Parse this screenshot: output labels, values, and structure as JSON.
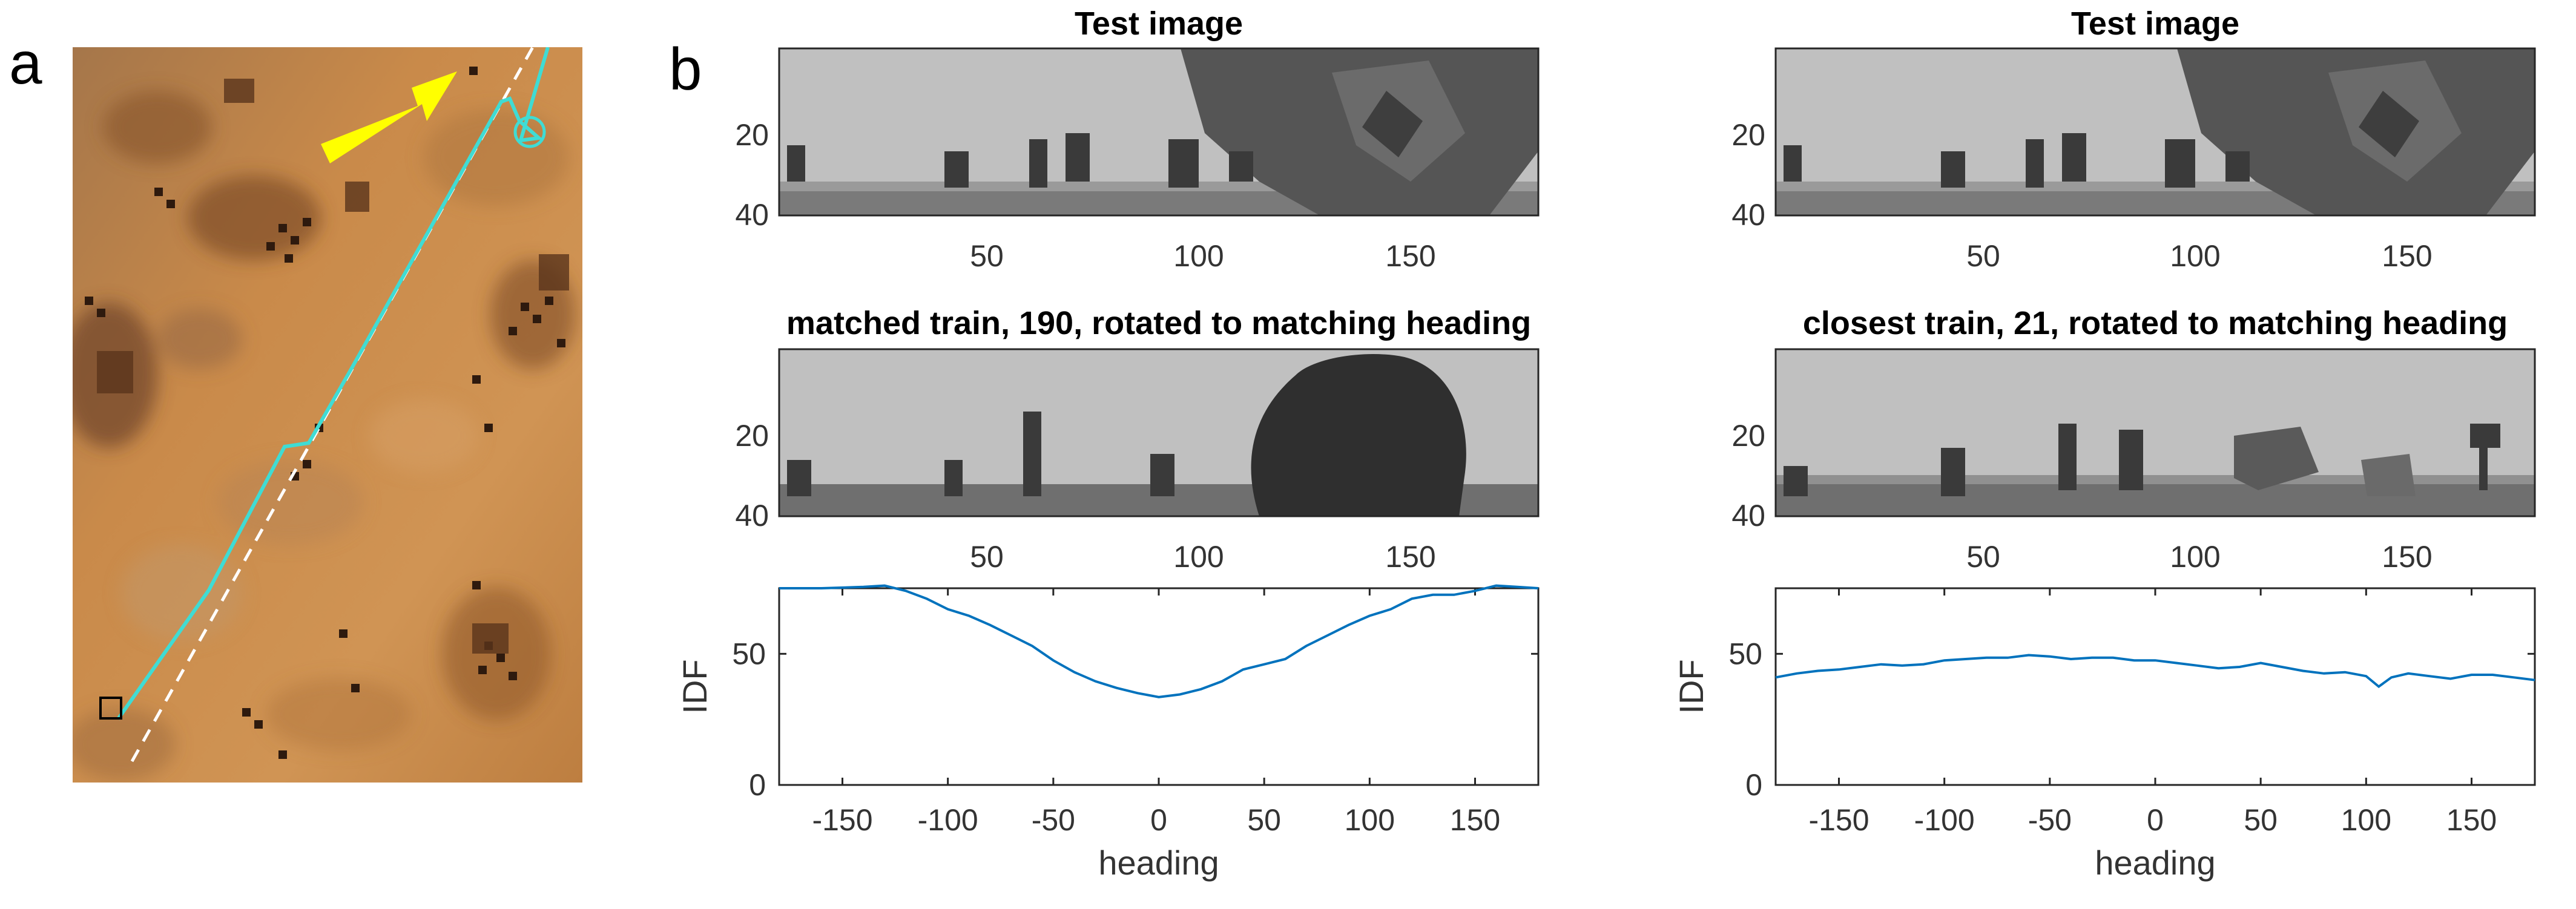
{
  "panel_labels": {
    "a": "a",
    "b": "b"
  },
  "map_panel": {
    "colors": {
      "ground_light": "#c98a4a",
      "ground_dark": "#8a5228",
      "route": "#3fdcd4",
      "arrow": "#ffff00"
    }
  },
  "image_panels": [
    {
      "title": "Test image",
      "y_ticks": [
        "20",
        "40"
      ],
      "x_ticks": [
        "50",
        "100",
        "150"
      ]
    },
    {
      "title": "Test image",
      "y_ticks": [
        "20",
        "40"
      ],
      "x_ticks": [
        "50",
        "100",
        "150"
      ]
    },
    {
      "title": "matched train, 190, rotated to matching heading",
      "y_ticks": [
        "20",
        "40"
      ],
      "x_ticks": [
        "50",
        "100",
        "150"
      ]
    },
    {
      "title": "closest train, 21, rotated to matching heading",
      "y_ticks": [
        "20",
        "40"
      ],
      "x_ticks": [
        "50",
        "100",
        "150"
      ]
    }
  ],
  "chart_data": [
    {
      "type": "line",
      "xlabel": "heading",
      "ylabel": "IDF",
      "xlim": [
        -180,
        180
      ],
      "ylim": [
        0,
        75
      ],
      "x_ticks": [
        -150,
        -100,
        -50,
        0,
        50,
        100,
        150
      ],
      "y_ticks": [
        0,
        50
      ],
      "x_tick_labels": [
        "-150",
        "-100",
        "-50",
        "0",
        "50",
        "100",
        "150"
      ],
      "y_tick_labels": [
        "0",
        "50"
      ],
      "color": "#0072BD",
      "x": [
        -180,
        -160,
        -140,
        -130,
        -120,
        -110,
        -100,
        -90,
        -80,
        -70,
        -60,
        -50,
        -40,
        -30,
        -20,
        -10,
        0,
        10,
        20,
        30,
        40,
        50,
        60,
        70,
        80,
        90,
        100,
        110,
        120,
        130,
        140,
        150,
        160,
        170,
        180
      ],
      "y": [
        75,
        75,
        75.5,
        76,
        74,
        71,
        67,
        64.5,
        61,
        57,
        53,
        47.5,
        43,
        39.5,
        37,
        35,
        33.5,
        34.5,
        36.5,
        39.5,
        44,
        46,
        48,
        53,
        57,
        61,
        64.5,
        67,
        71,
        72.5,
        72.5,
        74,
        76,
        75.5,
        75
      ]
    },
    {
      "type": "line",
      "xlabel": "heading",
      "ylabel": "IDF",
      "xlim": [
        -180,
        180
      ],
      "ylim": [
        0,
        75
      ],
      "x_ticks": [
        -150,
        -100,
        -50,
        0,
        50,
        100,
        150
      ],
      "y_ticks": [
        0,
        50
      ],
      "x_tick_labels": [
        "-150",
        "-100",
        "-50",
        "0",
        "50",
        "100",
        "150"
      ],
      "y_tick_labels": [
        "0",
        "50"
      ],
      "color": "#0072BD",
      "x": [
        -180,
        -170,
        -160,
        -150,
        -140,
        -130,
        -120,
        -110,
        -100,
        -90,
        -80,
        -70,
        -60,
        -50,
        -40,
        -30,
        -20,
        -10,
        0,
        10,
        20,
        30,
        40,
        50,
        60,
        70,
        80,
        90,
        100,
        106,
        112,
        120,
        130,
        140,
        150,
        160,
        170,
        180
      ],
      "y": [
        41,
        42.5,
        43.5,
        44,
        45,
        46,
        45.5,
        46,
        47.5,
        48,
        48.5,
        48.5,
        49.5,
        49,
        48,
        48.5,
        48.5,
        47.5,
        47.5,
        46.5,
        45.5,
        44.5,
        45,
        46.5,
        45,
        43.5,
        42.5,
        43,
        41.5,
        37.5,
        41,
        42.5,
        41.5,
        40.5,
        42,
        42,
        41,
        40
      ]
    }
  ]
}
